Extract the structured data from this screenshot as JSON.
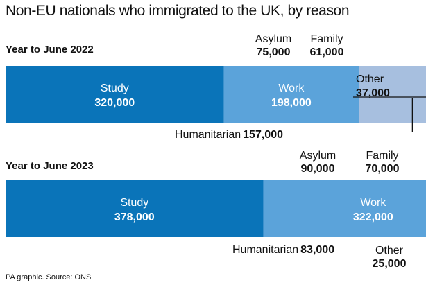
{
  "title": "Non-EU nationals who immigrated to the UK, by reason",
  "source": "PA graphic. Source: ONS",
  "colors": {
    "Study": "#0a74b9",
    "Work": "#5ba3da",
    "Humanitarian": "#a7bfdf",
    "Asylum": "#6cb9e2",
    "Family": "#d3e8f6",
    "Other": "#c8c8c8"
  },
  "chart_data": {
    "type": "bar",
    "orientation": "horizontal-stacked",
    "categories": [
      "Year to June 2022",
      "Year to June 2023"
    ],
    "series": [
      {
        "name": "Study",
        "values": [
          320000,
          378000
        ]
      },
      {
        "name": "Work",
        "values": [
          198000,
          322000
        ]
      },
      {
        "name": "Humanitarian",
        "values": [
          157000,
          83000
        ]
      },
      {
        "name": "Asylum",
        "values": [
          75000,
          90000
        ]
      },
      {
        "name": "Family",
        "values": [
          61000,
          70000
        ]
      },
      {
        "name": "Other",
        "values": [
          37000,
          25000
        ]
      }
    ],
    "value_labels": [
      [
        "320,000",
        "198,000",
        "157,000",
        "75,000",
        "61,000",
        "37,000"
      ],
      [
        "378,000",
        "322,000",
        "83,000",
        "90,000",
        "70,000",
        "25,000"
      ]
    ]
  }
}
